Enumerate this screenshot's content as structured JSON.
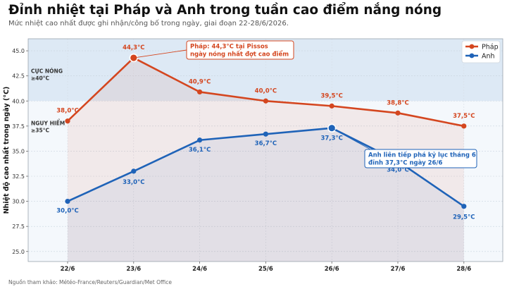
{
  "header": {
    "title": "Đỉnh nhiệt tại Pháp và Anh trong tuần cao điểm nắng nóng",
    "subtitle": "Mức nhiệt cao nhất được ghi nhận/công bố trong ngày, giai đoạn 22-28/6/2026."
  },
  "source": "Nguồn tham khảo: Météo-France/Reuters/Guardian/Met Office",
  "chart_data": {
    "type": "line",
    "categories": [
      "22/6",
      "23/6",
      "24/6",
      "25/6",
      "26/6",
      "27/6",
      "28/6"
    ],
    "ylabel": "Nhiệt độ cao nhất trong ngày (°C)",
    "xlabel": "",
    "ylim": [
      24.0,
      46.2
    ],
    "yticks": [
      "25.0",
      "27.5",
      "30.0",
      "32.5",
      "35.0",
      "37.5",
      "40.0",
      "42.5",
      "45.0"
    ],
    "grid": true,
    "legend_position": "top-right",
    "series": [
      {
        "name": "Pháp",
        "color": "#d4461f",
        "values": [
          38.0,
          44.3,
          40.9,
          40.0,
          39.5,
          38.8,
          37.5
        ],
        "labels": [
          "38,0°C",
          "44,3°C",
          "40,9°C",
          "40,0°C",
          "39,5°C",
          "38,8°C",
          "37,5°C"
        ]
      },
      {
        "name": "Anh",
        "color": "#1f63b8",
        "values": [
          30.0,
          33.0,
          36.1,
          36.7,
          37.3,
          34.0,
          29.5
        ],
        "labels": [
          "30,0°C",
          "33,0°C",
          "36,1°C",
          "36,7°C",
          "37,3°C",
          "34,0°C",
          "29,5°C"
        ]
      }
    ],
    "bands": [
      {
        "from": 40,
        "label_line1": "CỰC NÓNG",
        "label_line2": "≥40°C",
        "color": "#dde9f5"
      },
      {
        "from": 35,
        "label_line1": "NGUY HIỂM",
        "label_line2": "≥35°C",
        "color": "#e9f0f9"
      }
    ],
    "annotations": [
      {
        "series": 0,
        "point": 1,
        "line1": "Pháp: 44,3°C tại Pissos",
        "line2": "ngày nóng nhất đợt cao điểm"
      },
      {
        "series": 1,
        "point": 4,
        "line1": "Anh liên tiếp phá kỷ lục tháng 6",
        "line2": "đỉnh 37,3°C ngày 26/6"
      }
    ]
  }
}
